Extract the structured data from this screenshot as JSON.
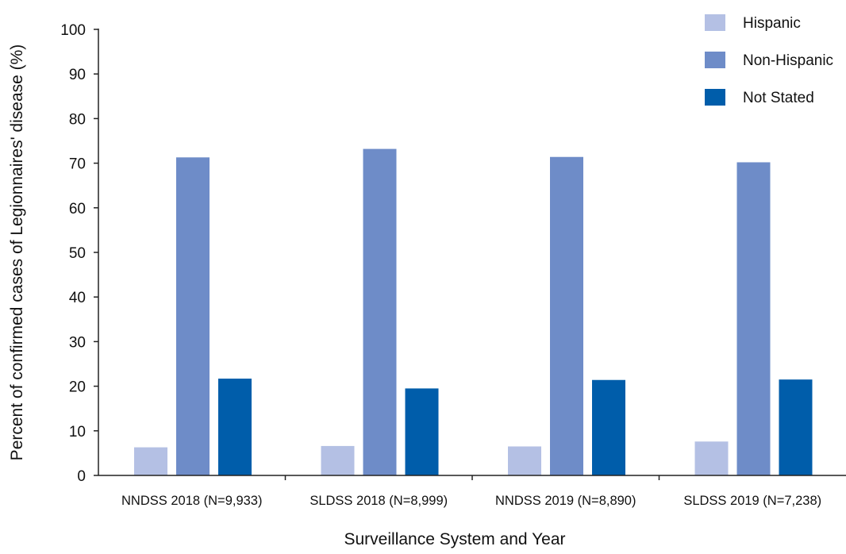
{
  "chart_data": {
    "type": "bar",
    "title": "",
    "xlabel": "Surveillance System and Year",
    "ylabel": "Percent of confirmed cases of Legionnaires' disease (%)",
    "ylim": [
      0,
      100
    ],
    "yticks": [
      0,
      10,
      20,
      30,
      40,
      50,
      60,
      70,
      80,
      90,
      100
    ],
    "categories": [
      "NNDSS 2018 (N=9,933)",
      "SLDSS 2018 (N=8,999)",
      "NNDSS 2019 (N=8,890)",
      "SLDSS 2019 (N=7,238)"
    ],
    "series": [
      {
        "name": "Hispanic",
        "color": "#b4c0e4",
        "values": [
          6.3,
          6.6,
          6.5,
          7.6
        ]
      },
      {
        "name": "Non-Hispanic",
        "color": "#6e8cc8",
        "values": [
          71.3,
          73.2,
          71.4,
          70.2
        ]
      },
      {
        "name": "Not Stated",
        "color": "#005daa",
        "values": [
          21.7,
          19.5,
          21.4,
          21.5
        ]
      }
    ],
    "legend_position": "top-right",
    "grid": false
  }
}
